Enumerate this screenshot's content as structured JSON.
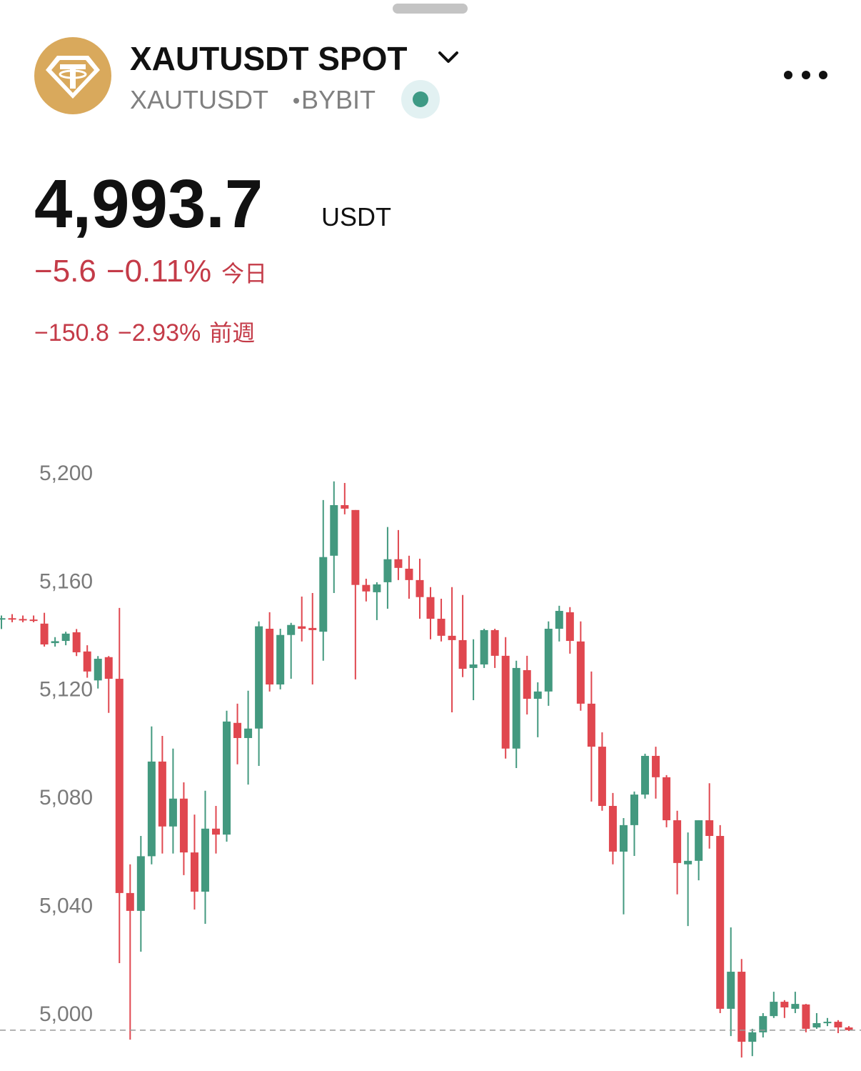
{
  "header": {
    "title": "XAUTUSDT SPOT",
    "symbol": "XAUTUSDT",
    "exchange": "BYBIT"
  },
  "quote": {
    "currency": "USDT",
    "day_change": "−5.6",
    "day_change_pct": "−0.11%",
    "day_label": "今日",
    "week_change": "−150.8",
    "week_change_pct": "−2.93%",
    "week_label": "前週"
  },
  "chart_data": {
    "type": "candlestick",
    "price": 4993.7,
    "price_label": "4,993.7",
    "up_color": "#43997f",
    "down_color": "#e0474f",
    "ylim": [
      4978.6,
      5205.5
    ],
    "yticks": [
      {
        "value": 5200,
        "label": "5,200"
      },
      {
        "value": 5160,
        "label": "5,160"
      },
      {
        "value": 5120,
        "label": "5,120"
      },
      {
        "value": 5080,
        "label": "5,080"
      },
      {
        "value": 5040,
        "label": "5,040"
      },
      {
        "value": 5000,
        "label": "5,000"
      }
    ],
    "open": [
      5145.5,
      5146,
      5145.7,
      5145.5,
      5144,
      5136.8,
      5137.6,
      5140.8,
      5133.7,
      5123,
      5131.6,
      5123.6,
      5044.4,
      5037.8,
      5058,
      5093,
      5069,
      5079.3,
      5059.4,
      5044.9,
      5068.2,
      5066,
      5107.3,
      5101.7,
      5105.2,
      5142.1,
      5121.5,
      5139.8,
      5143,
      5142.4,
      5141,
      5169.1,
      5187.8,
      5186,
      5158.3,
      5155.6,
      5159.3,
      5167.8,
      5164.3,
      5160.1,
      5153.8,
      5145.8,
      5139.5,
      5137.9,
      5127.6,
      5128.9,
      5141.6,
      5132.1,
      5097.8,
      5126.8,
      5116.2,
      5118.9,
      5142.1,
      5148.2,
      5137.4,
      5114.4,
      5098.5,
      5076.6,
      5059.7,
      5069.5,
      5080.8,
      5095.1,
      5087.2,
      5071.3,
      5055,
      5056.3,
      5071.3,
      5065.5,
      5001.6,
      5015.3,
      4989.4,
      4992.9,
      4998.9,
      5004.2,
      5001.6,
      5003.2,
      4994.7,
      4996.3,
      4996.8,
      4994.7
    ],
    "high": [
      5147,
      5147.5,
      5147,
      5147,
      5148,
      5139,
      5141,
      5142,
      5136,
      5132,
      5132,
      5149.8,
      5055,
      5065.5,
      5106,
      5102.5,
      5097.8,
      5085.3,
      5073.4,
      5082.2,
      5076.6,
      5111.8,
      5114.4,
      5119.2,
      5144.8,
      5148.2,
      5142.1,
      5144.3,
      5154,
      5155.3,
      5189.7,
      5196.6,
      5196,
      5186,
      5160.6,
      5159.3,
      5179.7,
      5178.6,
      5169.1,
      5168,
      5157.5,
      5153.2,
      5157.5,
      5154.6,
      5138.2,
      5142.1,
      5142.1,
      5139,
      5130.3,
      5132.1,
      5122.3,
      5144.8,
      5150.6,
      5150.1,
      5144.8,
      5126.3,
      5103.8,
      5081.4,
      5072.1,
      5081.9,
      5095.9,
      5098.5,
      5088,
      5074.8,
      5066.8,
      5071.3,
      5085,
      5069.5,
      5031.7,
      5020,
      4994.2,
      5000,
      5007.9,
      5004.8,
      5007.9,
      5003.4,
      5000,
      4998.2,
      4997.4,
      4995.2
    ],
    "low": [
      5142,
      5144.5,
      5144.5,
      5144.5,
      5135.5,
      5135.5,
      5136,
      5132,
      5124,
      5120,
      5111,
      5018.5,
      4990.2,
      5022.7,
      5055,
      5059,
      5059,
      5051,
      5038.3,
      5033,
      5059,
      5063.4,
      5092,
      5084.5,
      5091.4,
      5118.9,
      5119.7,
      5123.6,
      5137.4,
      5121.5,
      5130.3,
      5155.3,
      5184.4,
      5123.4,
      5152.2,
      5145.3,
      5149.5,
      5160.1,
      5153.2,
      5145.8,
      5138.2,
      5137.4,
      5111.2,
      5124.2,
      5115.7,
      5127.6,
      5127.6,
      5094.1,
      5090.6,
      5110.4,
      5102,
      5113.6,
      5137.4,
      5132.9,
      5111.8,
      5078.2,
      5074.8,
      5055,
      5036.5,
      5058.1,
      5079.3,
      5079.3,
      5068.7,
      5043.9,
      5032.2,
      5049.1,
      5060.8,
      5000,
      4991.5,
      4983.6,
      4984.1,
      4991,
      4998.2,
      4998.2,
      5000,
      4992.9,
      4994.2,
      4995.2,
      4992.6,
      4993.4
    ],
    "close": [
      5146,
      5145.5,
      5145.5,
      5145.3,
      5136.3,
      5137.5,
      5140.3,
      5133.4,
      5126.3,
      5131,
      5123.6,
      5044.4,
      5037.8,
      5058,
      5093,
      5069,
      5079.3,
      5059.4,
      5044.9,
      5068.2,
      5066,
      5107.8,
      5101.7,
      5105.2,
      5143,
      5121.5,
      5139.8,
      5143.5,
      5142.1,
      5141.6,
      5168.6,
      5187.8,
      5186.5,
      5158.3,
      5155.9,
      5158.5,
      5167.8,
      5164.6,
      5160.1,
      5153.8,
      5145.8,
      5139.5,
      5137.9,
      5127.3,
      5128.9,
      5141.6,
      5132.1,
      5097.8,
      5127.6,
      5116.2,
      5118.9,
      5142.1,
      5148.7,
      5137.6,
      5114.4,
      5098.5,
      5076.6,
      5059.7,
      5069.5,
      5080.8,
      5095.1,
      5087.2,
      5071.3,
      5055.5,
      5056.3,
      5071.3,
      5065.5,
      5001.6,
      5015.3,
      4989.4,
      4992.9,
      4998.9,
      5004.2,
      5002.1,
      5003.4,
      4994.2,
      4996.3,
      4996.8,
      4994.7,
      4993.7
    ]
  }
}
